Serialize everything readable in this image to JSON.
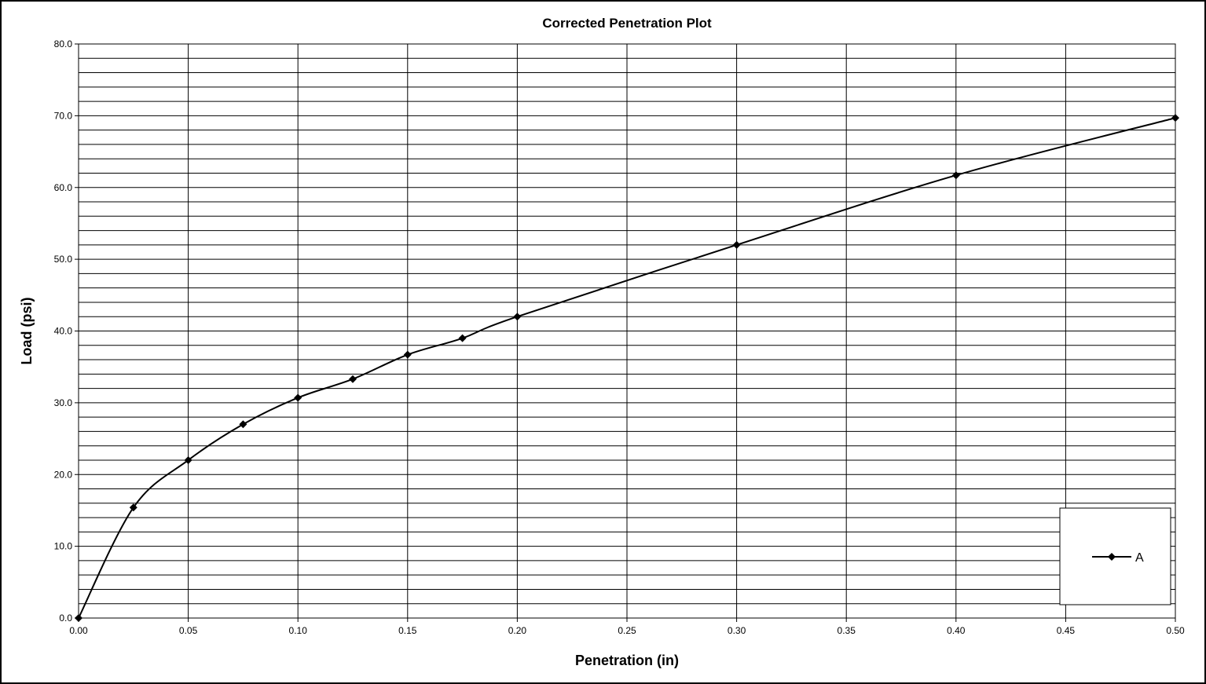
{
  "chart_data": {
    "type": "line",
    "title": "Corrected Penetration Plot",
    "xlabel": "Penetration (in)",
    "ylabel": "Load (psi)",
    "xlim": [
      0,
      0.5
    ],
    "ylim": [
      0,
      80
    ],
    "grid": true,
    "x_ticks": [
      "0.00",
      "0.05",
      "0.10",
      "0.15",
      "0.20",
      "0.25",
      "0.30",
      "0.35",
      "0.40",
      "0.45",
      "0.50"
    ],
    "y_ticks": [
      "0.0",
      "10.0",
      "20.0",
      "30.0",
      "40.0",
      "50.0",
      "60.0",
      "70.0",
      "80.0"
    ],
    "legend_position": "bottom-right",
    "series": [
      {
        "name": "A",
        "color": "#000000",
        "marker": "diamond",
        "x": [
          0.0,
          0.025,
          0.05,
          0.075,
          0.1,
          0.125,
          0.15,
          0.175,
          0.2,
          0.3,
          0.4,
          0.5
        ],
        "y": [
          0.0,
          15.4,
          22.0,
          27.0,
          30.7,
          33.3,
          36.7,
          39.0,
          42.0,
          52.0,
          61.7,
          69.7
        ]
      }
    ]
  }
}
